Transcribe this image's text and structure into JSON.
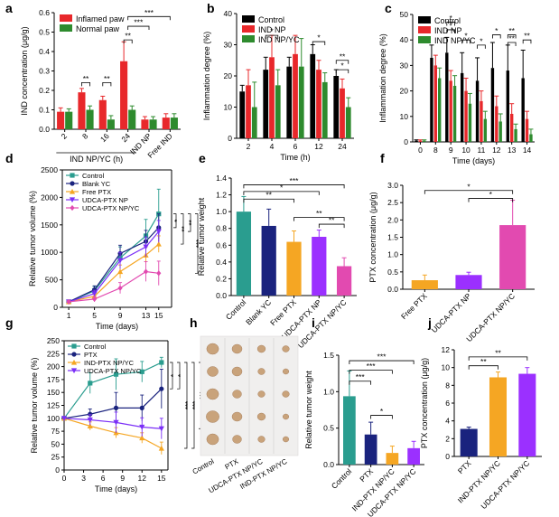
{
  "chart_data": [
    {
      "panel": "a",
      "type": "bar",
      "ylabel": "IND concentration (μg/g)",
      "ylim": [
        0,
        0.6
      ],
      "yticks": [
        "0.0",
        "0.1",
        "0.2",
        "0.3",
        "0.4",
        "0.5",
        "0.6"
      ],
      "categories": [
        "2",
        "8",
        "16",
        "24",
        "IND NP",
        "Free IND"
      ],
      "group_label": "IND NP/YC (h)",
      "series": [
        {
          "name": "Inflamed paw",
          "color": "#e8282b",
          "values": [
            0.09,
            0.19,
            0.15,
            0.35,
            0.05,
            0.06
          ],
          "err": [
            0.02,
            0.02,
            0.02,
            0.1,
            0.015,
            0.02
          ]
        },
        {
          "name": "Normal paw",
          "color": "#2e8b2e",
          "values": [
            0.09,
            0.1,
            0.05,
            0.1,
            0.05,
            0.06
          ],
          "err": [
            0.015,
            0.02,
            0.02,
            0.02,
            0.015,
            0.02
          ]
        }
      ],
      "brackets": [
        {
          "label": "**",
          "from": 1,
          "to": 1,
          "level": 0.24
        },
        {
          "label": "**",
          "from": 2,
          "to": 2,
          "level": 0.24
        },
        {
          "label": "**",
          "from": 3,
          "to": 3,
          "level": 0.46
        },
        {
          "label": "***",
          "from": 3,
          "to": 4,
          "level": 0.53
        },
        {
          "label": "***",
          "from": 3,
          "to": 5,
          "level": 0.58
        }
      ]
    },
    {
      "panel": "b",
      "type": "bar",
      "xlabel": "Time (h)",
      "ylabel": "Inflammation degree (%)",
      "ylim": [
        0,
        40
      ],
      "yticks": [
        "0",
        "10",
        "20",
        "30",
        "40"
      ],
      "categories": [
        "2",
        "4",
        "6",
        "12",
        "24"
      ],
      "series": [
        {
          "name": "Control",
          "color": "#000000",
          "values": [
            15,
            22,
            23,
            27,
            20
          ],
          "err": [
            2,
            4,
            3,
            3,
            2
          ]
        },
        {
          "name": "IND NP",
          "color": "#e8282b",
          "values": [
            17,
            26,
            27,
            22,
            16
          ],
          "err": [
            5,
            7,
            6,
            3,
            3
          ]
        },
        {
          "name": "IND NP/YC",
          "color": "#2e8b2e",
          "values": [
            10,
            17,
            23,
            18,
            10
          ],
          "err": [
            8,
            5,
            9,
            3,
            3
          ]
        }
      ],
      "brackets": [
        {
          "label": "*",
          "from": 1,
          "to": 1,
          "level": 33
        },
        {
          "label": "*",
          "from": 3,
          "to": 3,
          "level": 31
        },
        {
          "label": "**",
          "from": 4,
          "to": 4,
          "level": 25
        },
        {
          "label": "*",
          "from": 4,
          "to": 4,
          "level": 22
        }
      ]
    },
    {
      "panel": "c",
      "type": "bar",
      "xlabel": "Time (days)",
      "ylabel": "Inflammation degree (%)",
      "ylim": [
        0,
        50
      ],
      "yticks": [
        "0",
        "10",
        "20",
        "30",
        "40",
        "50"
      ],
      "categories": [
        "0",
        "8",
        "9",
        "10",
        "11",
        "12",
        "13",
        "14"
      ],
      "series": [
        {
          "name": "Control",
          "color": "#000000",
          "values": [
            0.5,
            33,
            35,
            27,
            24,
            29,
            28,
            25
          ],
          "err": [
            0.3,
            5,
            6,
            8,
            9,
            10,
            10,
            11
          ]
        },
        {
          "name": "IND NP",
          "color": "#e8282b",
          "values": [
            0.5,
            30,
            24,
            20,
            16,
            14,
            11,
            9
          ],
          "err": [
            0.3,
            4,
            4,
            5,
            4,
            4,
            4,
            3
          ]
        },
        {
          "name": "IND NP/YC",
          "color": "#2e8b2e",
          "values": [
            0.5,
            25,
            22,
            15,
            9,
            8,
            5,
            3
          ],
          "err": [
            0.3,
            4,
            4,
            4,
            3,
            3,
            2,
            2
          ]
        }
      ],
      "brackets": [
        {
          "label": "*",
          "from": 2,
          "to": 2,
          "level": 47
        },
        {
          "label": "*",
          "from": 2,
          "to": 2,
          "level": 44
        },
        {
          "label": "*",
          "from": 3,
          "to": 3,
          "level": 40
        },
        {
          "label": "*",
          "from": 4,
          "to": 4,
          "level": 38
        },
        {
          "label": "*",
          "from": 5,
          "to": 5,
          "level": 42
        },
        {
          "label": "**",
          "from": 6,
          "to": 6,
          "level": 42
        },
        {
          "label": "**",
          "from": 6,
          "to": 6,
          "level": 39
        },
        {
          "label": "**",
          "from": 7,
          "to": 7,
          "level": 40
        }
      ]
    },
    {
      "panel": "d",
      "type": "line",
      "xlabel": "Time (days)",
      "ylabel": "Relative tumor volume (%)",
      "ylim": [
        0,
        2500
      ],
      "yticks": [
        "0",
        "500",
        "1000",
        "1500",
        "2000",
        "2500"
      ],
      "xlim": [
        0,
        17
      ],
      "xticks": [
        "1",
        "5",
        "9",
        "13",
        "15"
      ],
      "x": [
        1,
        5,
        9,
        13,
        15
      ],
      "series": [
        {
          "name": "Control",
          "color": "#2a9d8f",
          "marker": "square",
          "values": [
            100,
            300,
            900,
            1300,
            1700
          ],
          "err": [
            20,
            80,
            200,
            300,
            450
          ]
        },
        {
          "name": "Blank YC",
          "color": "#1a237e",
          "marker": "circle",
          "values": [
            100,
            320,
            980,
            1200,
            1450
          ],
          "err": [
            20,
            70,
            150,
            200,
            250
          ]
        },
        {
          "name": "Free PTX",
          "color": "#f5a623",
          "marker": "triangle",
          "values": [
            100,
            200,
            650,
            950,
            1150
          ],
          "err": [
            20,
            50,
            120,
            150,
            150
          ]
        },
        {
          "name": "UDCA-PTX NP",
          "color": "#7b2ff7",
          "marker": "tridown",
          "values": [
            100,
            250,
            850,
            1100,
            1380
          ],
          "err": [
            20,
            60,
            150,
            180,
            200
          ]
        },
        {
          "name": "UDCA-PTX NP/YC",
          "color": "#e24ab0",
          "marker": "diamond",
          "values": [
            100,
            150,
            350,
            650,
            620
          ],
          "err": [
            20,
            50,
            100,
            180,
            220
          ]
        }
      ],
      "sig": [
        "*",
        "**",
        "**",
        "***"
      ]
    },
    {
      "panel": "e",
      "type": "bar",
      "ylabel": "Relative tumor weight",
      "ylim": [
        0,
        1.4
      ],
      "yticks": [
        "0.0",
        "0.2",
        "0.4",
        "0.6",
        "0.8",
        "1.0",
        "1.2",
        "1.4"
      ],
      "categories": [
        "Control",
        "Blank YC",
        "Free PTX",
        "UDCA-PTX NP",
        "UDCA-PTX NP/YC"
      ],
      "series": [
        {
          "name": "",
          "colors": [
            "#2a9d8f",
            "#1a237e",
            "#f5a623",
            "#9b30ff",
            "#e24ab0"
          ],
          "values": [
            1.0,
            0.83,
            0.64,
            0.7,
            0.35
          ],
          "err": [
            0.18,
            0.2,
            0.13,
            0.08,
            0.1
          ]
        }
      ],
      "brackets": [
        {
          "label": "***",
          "from": 0,
          "to": 4,
          "level": 1.32
        },
        {
          "label": "*",
          "from": 0,
          "to": 3,
          "level": 1.24
        },
        {
          "label": "**",
          "from": 0,
          "to": 2,
          "level": 1.15
        },
        {
          "label": "**",
          "from": 2,
          "to": 4,
          "level": 0.93
        },
        {
          "label": "**",
          "from": 3,
          "to": 4,
          "level": 0.85
        }
      ]
    },
    {
      "panel": "f",
      "type": "bar",
      "ylabel": "PTX concentration (μg/g)",
      "ylim": [
        0,
        3.0
      ],
      "yticks": [
        "0.0",
        "0.5",
        "1.0",
        "1.5",
        "2.0",
        "2.5",
        "3.0"
      ],
      "categories": [
        "Free PTX",
        "UDCA-PTX NP",
        "UDCA-PTX NP/YC"
      ],
      "series": [
        {
          "name": "",
          "colors": [
            "#f5a623",
            "#9b30ff",
            "#e24ab0"
          ],
          "values": [
            0.26,
            0.41,
            1.85
          ],
          "err": [
            0.15,
            0.08,
            0.72
          ]
        }
      ],
      "brackets": [
        {
          "label": "*",
          "from": 0,
          "to": 2,
          "level": 2.85
        },
        {
          "label": "*",
          "from": 1,
          "to": 2,
          "level": 2.62
        }
      ]
    },
    {
      "panel": "g",
      "type": "line",
      "xlabel": "Time (days)",
      "ylabel": "Relative tumor volume (%)",
      "ylim": [
        0,
        250
      ],
      "yticks": [
        "0",
        "25",
        "50",
        "75",
        "100",
        "125",
        "150",
        "175",
        "200",
        "225",
        "250"
      ],
      "xlim": [
        0,
        16
      ],
      "xticks": [
        "0",
        "3",
        "6",
        "9",
        "12",
        "15"
      ],
      "x": [
        0,
        4,
        8,
        12,
        15
      ],
      "series": [
        {
          "name": "Control",
          "color": "#2a9d8f",
          "marker": "square",
          "values": [
            100,
            168,
            185,
            190,
            208
          ],
          "err": [
            3,
            20,
            30,
            20,
            10
          ]
        },
        {
          "name": "PTX",
          "color": "#1a237e",
          "marker": "circle",
          "values": [
            100,
            108,
            120,
            120,
            157
          ],
          "err": [
            3,
            10,
            30,
            25,
            38
          ]
        },
        {
          "name": "IND-PTX NP/YC",
          "color": "#f5a623",
          "marker": "triangle",
          "values": [
            100,
            85,
            72,
            62,
            42
          ],
          "err": [
            3,
            8,
            10,
            10,
            12
          ]
        },
        {
          "name": "UDCA-PTX NP/YC",
          "color": "#7b2ff7",
          "marker": "tridown",
          "values": [
            100,
            97,
            92,
            83,
            80
          ],
          "err": [
            3,
            10,
            20,
            18,
            20
          ]
        }
      ],
      "sig": [
        "*",
        "*",
        "***",
        "***",
        "***"
      ]
    },
    {
      "panel": "i",
      "type": "bar",
      "ylabel": "Relative tumor weight",
      "ylim": [
        0,
        1.6
      ],
      "yticks": [
        "0.0",
        "0.5",
        "1.0",
        "1.5"
      ],
      "categories": [
        "Control",
        "PTX",
        "IND-PTX NP/YC",
        "UDCA-PTX NP/YC"
      ],
      "series": [
        {
          "name": "",
          "colors": [
            "#2a9d8f",
            "#1a237e",
            "#f5a623",
            "#9b30ff"
          ],
          "values": [
            1.0,
            0.44,
            0.17,
            0.24
          ],
          "err": [
            0.37,
            0.18,
            0.1,
            0.1
          ]
        }
      ],
      "brackets": [
        {
          "label": "***",
          "from": 0,
          "to": 3,
          "level": 1.52
        },
        {
          "label": "***",
          "from": 0,
          "to": 2,
          "level": 1.38
        },
        {
          "label": "***",
          "from": 0,
          "to": 1,
          "level": 1.22
        },
        {
          "label": "*",
          "from": 1,
          "to": 2,
          "level": 0.72
        }
      ]
    },
    {
      "panel": "j",
      "type": "bar",
      "ylabel": "PTX concentration (μg/g)",
      "ylim": [
        0,
        12
      ],
      "yticks": [
        "0",
        "2",
        "4",
        "6",
        "8",
        "10",
        "12"
      ],
      "categories": [
        "PTX",
        "IND-PTX NP/YC",
        "UDCA-PTX NP/YC"
      ],
      "series": [
        {
          "name": "",
          "colors": [
            "#1a237e",
            "#f5a623",
            "#9b30ff"
          ],
          "values": [
            3.1,
            8.9,
            9.3
          ],
          "err": [
            0.2,
            0.6,
            0.7
          ]
        }
      ],
      "brackets": [
        {
          "label": "**",
          "from": 0,
          "to": 2,
          "level": 11.2
        },
        {
          "label": "**",
          "from": 0,
          "to": 1,
          "level": 10.2
        }
      ]
    }
  ],
  "photo": {
    "columns": [
      "Control",
      "PTX",
      "UDCA-PTX NP/YC",
      "IND-PTX NP/YC"
    ],
    "tumor_color": "#c9a37b"
  },
  "panel_letters": [
    "a",
    "b",
    "c",
    "d",
    "e",
    "f",
    "g",
    "h",
    "i",
    "j"
  ]
}
